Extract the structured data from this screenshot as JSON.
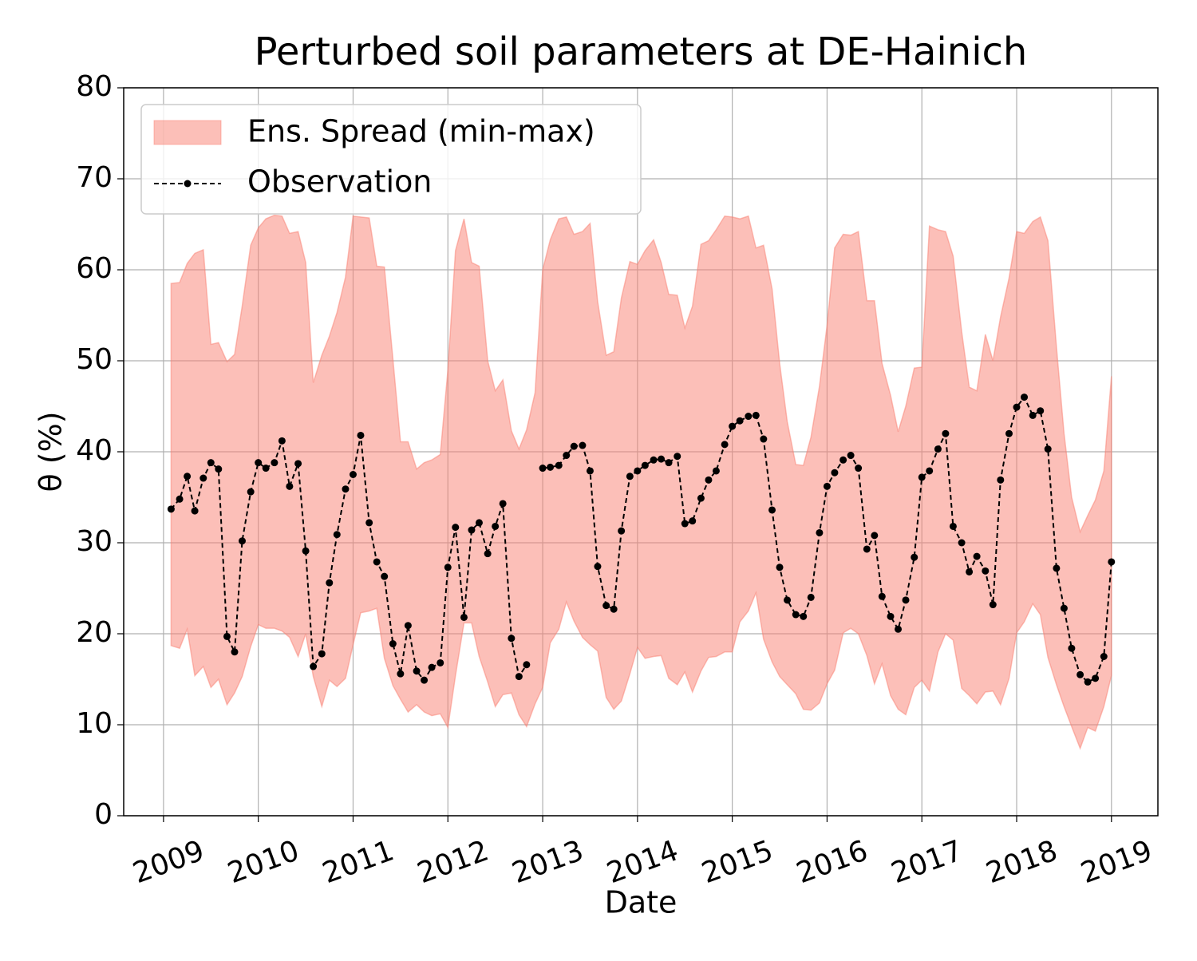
{
  "chart_data": {
    "type": "line",
    "title": "Perturbed soil parameters at DE-Hainich",
    "x_label": "Date",
    "y_label": "θ  (%)",
    "x": [
      2009.08,
      2009.17,
      2009.25,
      2009.33,
      2009.42,
      2009.5,
      2009.58,
      2009.67,
      2009.75,
      2009.83,
      2009.92,
      2010,
      2010.08,
      2010.17,
      2010.25,
      2010.33,
      2010.42,
      2010.5,
      2010.58,
      2010.67,
      2010.75,
      2010.83,
      2010.92,
      2011,
      2011.08,
      2011.17,
      2011.25,
      2011.33,
      2011.42,
      2011.5,
      2011.58,
      2011.67,
      2011.75,
      2011.83,
      2011.92,
      2012,
      2012.08,
      2012.17,
      2012.25,
      2012.33,
      2012.42,
      2012.5,
      2012.58,
      2012.67,
      2012.75,
      2012.83,
      2012.92,
      2013,
      2013.08,
      2013.17,
      2013.25,
      2013.33,
      2013.42,
      2013.5,
      2013.58,
      2013.67,
      2013.75,
      2013.83,
      2013.92,
      2014,
      2014.08,
      2014.17,
      2014.25,
      2014.33,
      2014.42,
      2014.5,
      2014.58,
      2014.67,
      2014.75,
      2014.83,
      2014.92,
      2015,
      2015.08,
      2015.17,
      2015.25,
      2015.33,
      2015.42,
      2015.5,
      2015.58,
      2015.67,
      2015.75,
      2015.83,
      2015.92,
      2016,
      2016.08,
      2016.17,
      2016.25,
      2016.33,
      2016.42,
      2016.5,
      2016.58,
      2016.67,
      2016.75,
      2016.83,
      2016.92,
      2017,
      2017.08,
      2017.17,
      2017.25,
      2017.33,
      2017.42,
      2017.5,
      2017.58,
      2017.67,
      2017.75,
      2017.83,
      2017.92,
      2018,
      2018.08,
      2018.17,
      2018.25,
      2018.33,
      2018.42,
      2018.5,
      2018.58,
      2018.67,
      2018.75,
      2018.83,
      2018.92,
      2019
    ],
    "band": {
      "name": "Ens. Spread (min-max)",
      "color": "#fa8072",
      "lower": [
        18.7,
        18.4,
        20.5,
        15.4,
        16.4,
        14.1,
        15.0,
        12.2,
        13.5,
        15.3,
        18.6,
        21.0,
        20.6,
        20.6,
        20.3,
        19.6,
        17.5,
        20.0,
        15.3,
        12.0,
        14.9,
        14.2,
        15.1,
        18.8,
        22.3,
        22.5,
        22.8,
        17.3,
        14.3,
        12.8,
        11.4,
        12.2,
        11.4,
        11.0,
        11.2,
        9.7,
        15.4,
        21.2,
        21.2,
        17.5,
        14.7,
        12.0,
        13.3,
        13.5,
        11.1,
        9.8,
        12.3,
        14.1,
        19.0,
        20.5,
        23.5,
        21.4,
        19.6,
        18.8,
        18.1,
        13.0,
        11.7,
        12.6,
        15.6,
        18.5,
        17.3,
        17.5,
        17.6,
        15.1,
        14.4,
        15.8,
        13.6,
        15.9,
        17.4,
        17.5,
        18.0,
        18.0,
        21.3,
        22.5,
        24.5,
        19.4,
        16.9,
        15.3,
        14.4,
        13.4,
        11.7,
        11.6,
        12.4,
        14.5,
        16.0,
        20.1,
        20.6,
        20.0,
        17.6,
        14.5,
        16.7,
        13.2,
        11.7,
        11.1,
        14.1,
        14.9,
        13.7,
        18.0,
        20.0,
        19.3,
        14.0,
        13.2,
        12.3,
        13.6,
        13.7,
        12.2,
        15.1,
        20.1,
        21.3,
        23.3,
        22.1,
        17.4,
        14.4,
        12.0,
        9.8,
        7.4,
        9.7,
        9.3,
        12.0,
        15.4
      ],
      "upper": [
        58.5,
        58.6,
        60.7,
        61.8,
        62.2,
        51.8,
        52.0,
        49.9,
        50.7,
        56.0,
        62.7,
        64.6,
        65.6,
        66.0,
        65.9,
        64.0,
        64.2,
        60.8,
        47.6,
        50.6,
        52.7,
        55.3,
        59.2,
        65.9,
        65.8,
        65.7,
        60.4,
        60.3,
        50.2,
        41.1,
        41.1,
        38.1,
        38.8,
        39.1,
        39.7,
        49.0,
        62.1,
        65.6,
        60.8,
        60.4,
        50.0,
        46.7,
        47.9,
        42.3,
        40.3,
        42.4,
        46.5,
        60.0,
        63.3,
        65.6,
        65.8,
        63.9,
        64.2,
        65.1,
        56.5,
        50.6,
        51.0,
        56.9,
        60.9,
        60.6,
        62.1,
        63.3,
        60.8,
        57.3,
        57.2,
        53.6,
        56.0,
        62.8,
        63.2,
        64.4,
        65.9,
        65.8,
        65.6,
        65.9,
        62.4,
        62.7,
        57.9,
        49.7,
        43.3,
        38.6,
        38.5,
        41.6,
        47.2,
        53.9,
        62.4,
        63.9,
        63.8,
        64.2,
        56.6,
        56.6,
        49.7,
        46.2,
        42.2,
        45.0,
        49.2,
        49.3,
        64.8,
        64.4,
        64.2,
        61.5,
        53.2,
        47.1,
        46.7,
        52.9,
        50.0,
        54.8,
        59.1,
        64.2,
        64.0,
        65.3,
        65.8,
        63.2,
        51.5,
        42.0,
        35.0,
        31.2,
        33.0,
        34.7,
        37.9,
        48.3
      ]
    },
    "series": [
      {
        "name": "Observation",
        "color": "#000000",
        "values": [
          33.7,
          34.8,
          37.3,
          33.5,
          37.1,
          38.8,
          38.1,
          19.7,
          18.0,
          30.2,
          35.6,
          38.8,
          38.2,
          38.8,
          41.2,
          36.2,
          38.7,
          29.1,
          16.4,
          17.8,
          25.6,
          30.9,
          35.9,
          37.5,
          41.8,
          32.2,
          27.9,
          26.3,
          18.9,
          15.6,
          20.9,
          15.9,
          14.9,
          16.3,
          16.8,
          27.3,
          31.7,
          21.8,
          31.4,
          32.2,
          28.8,
          31.8,
          34.3,
          19.5,
          15.3,
          16.6,
          null,
          38.2,
          38.3,
          38.5,
          39.6,
          40.6,
          40.7,
          37.9,
          27.4,
          23.1,
          22.7,
          31.3,
          37.3,
          37.9,
          38.5,
          39.1,
          39.2,
          38.8,
          39.5,
          32.1,
          32.4,
          34.9,
          36.9,
          37.9,
          40.8,
          42.8,
          43.4,
          43.9,
          44.0,
          41.4,
          33.6,
          27.3,
          23.7,
          22.1,
          21.9,
          24.0,
          31.1,
          36.2,
          37.7,
          39.1,
          39.6,
          38.2,
          29.3,
          30.8,
          24.1,
          21.9,
          20.5,
          23.7,
          28.4,
          37.2,
          37.9,
          40.3,
          42.0,
          31.8,
          30.0,
          26.8,
          28.5,
          26.9,
          23.2,
          36.9,
          42.0,
          44.9,
          46.0,
          44.0,
          44.5,
          40.3,
          27.2,
          22.8,
          18.4,
          15.5,
          14.7,
          15.1,
          17.5,
          27.9
        ]
      }
    ],
    "xlim": [
      2008.58,
      2019.49
    ],
    "xticks": [
      2009,
      2010,
      2011,
      2012,
      2013,
      2014,
      2015,
      2016,
      2017,
      2018,
      2019
    ],
    "ylim": [
      0,
      80
    ],
    "yticks": [
      0,
      10,
      20,
      30,
      40,
      50,
      60,
      70,
      80
    ],
    "grid": true,
    "legend": "upper left"
  }
}
